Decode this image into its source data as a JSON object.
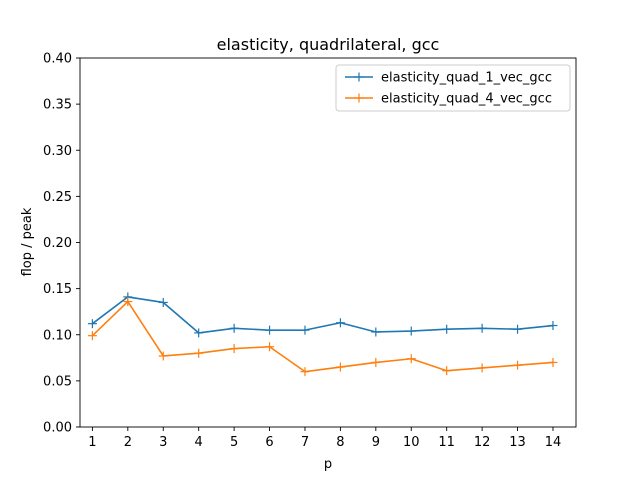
{
  "chart_data": {
    "type": "line",
    "title": "elasticity, quadrilateral, gcc",
    "xlabel": "p",
    "ylabel": "flop / peak",
    "x": [
      1,
      2,
      3,
      4,
      5,
      6,
      7,
      8,
      9,
      10,
      11,
      12,
      13,
      14
    ],
    "xticks": [
      "1",
      "2",
      "3",
      "4",
      "5",
      "6",
      "7",
      "8",
      "9",
      "10",
      "11",
      "12",
      "13",
      "14"
    ],
    "xlim": [
      0.65,
      14.65
    ],
    "ylim": [
      0.0,
      0.4
    ],
    "yticks": [
      "0.00",
      "0.05",
      "0.10",
      "0.15",
      "0.20",
      "0.25",
      "0.30",
      "0.35",
      "0.40"
    ],
    "yticks_values": [
      0.0,
      0.05,
      0.1,
      0.15,
      0.2,
      0.25,
      0.3,
      0.35,
      0.4
    ],
    "grid": false,
    "legend": "top-right",
    "series": [
      {
        "name": "elasticity_quad_1_vec_gcc",
        "color": "#1f77b4",
        "marker": "plus",
        "values": [
          0.112,
          0.141,
          0.135,
          0.102,
          0.107,
          0.105,
          0.105,
          0.113,
          0.103,
          0.104,
          0.106,
          0.107,
          0.106,
          0.11
        ]
      },
      {
        "name": "elasticity_quad_4_vec_gcc",
        "color": "#ff7f0e",
        "marker": "plus",
        "values": [
          0.099,
          0.136,
          0.077,
          0.08,
          0.085,
          0.087,
          0.06,
          0.065,
          0.07,
          0.074,
          0.061,
          0.064,
          0.067,
          0.07
        ]
      }
    ]
  }
}
